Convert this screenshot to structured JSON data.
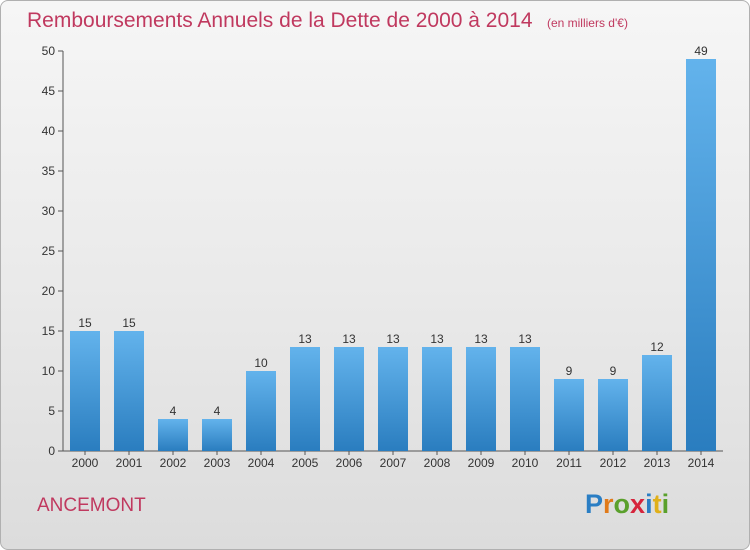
{
  "header": {
    "title": "Remboursements Annuels de la Dette de 2000 à 2014",
    "subtitle": "(en milliers d'€)"
  },
  "commune": "ANCEMONT",
  "logo": {
    "letters": [
      {
        "char": "P",
        "color": "#2a7ec4"
      },
      {
        "char": "r",
        "color": "#e07a1a"
      },
      {
        "char": "o",
        "color": "#5aa02c"
      },
      {
        "char": "x",
        "color": "#d6243c"
      },
      {
        "char": "i",
        "color": "#2a7ec4"
      },
      {
        "char": "t",
        "color": "#e0b01a"
      },
      {
        "char": "i",
        "color": "#5aa02c"
      }
    ]
  },
  "chart_data": {
    "type": "bar",
    "title": "Remboursements Annuels de la Dette de 2000 à 2014",
    "subtitle": "(en milliers d'€)",
    "categories": [
      "2000",
      "2001",
      "2002",
      "2003",
      "2004",
      "2005",
      "2006",
      "2007",
      "2008",
      "2009",
      "2010",
      "2011",
      "2012",
      "2013",
      "2014"
    ],
    "values": [
      15,
      15,
      4,
      4,
      10,
      13,
      13,
      13,
      13,
      13,
      13,
      9,
      9,
      12,
      49
    ],
    "ylim": [
      0,
      50
    ],
    "yticks": [
      0,
      5,
      10,
      15,
      20,
      25,
      30,
      35,
      40,
      45,
      50
    ],
    "grid": false,
    "bar_color_light": "#63b3ec",
    "bar_color_dark": "#2a7dbf"
  }
}
